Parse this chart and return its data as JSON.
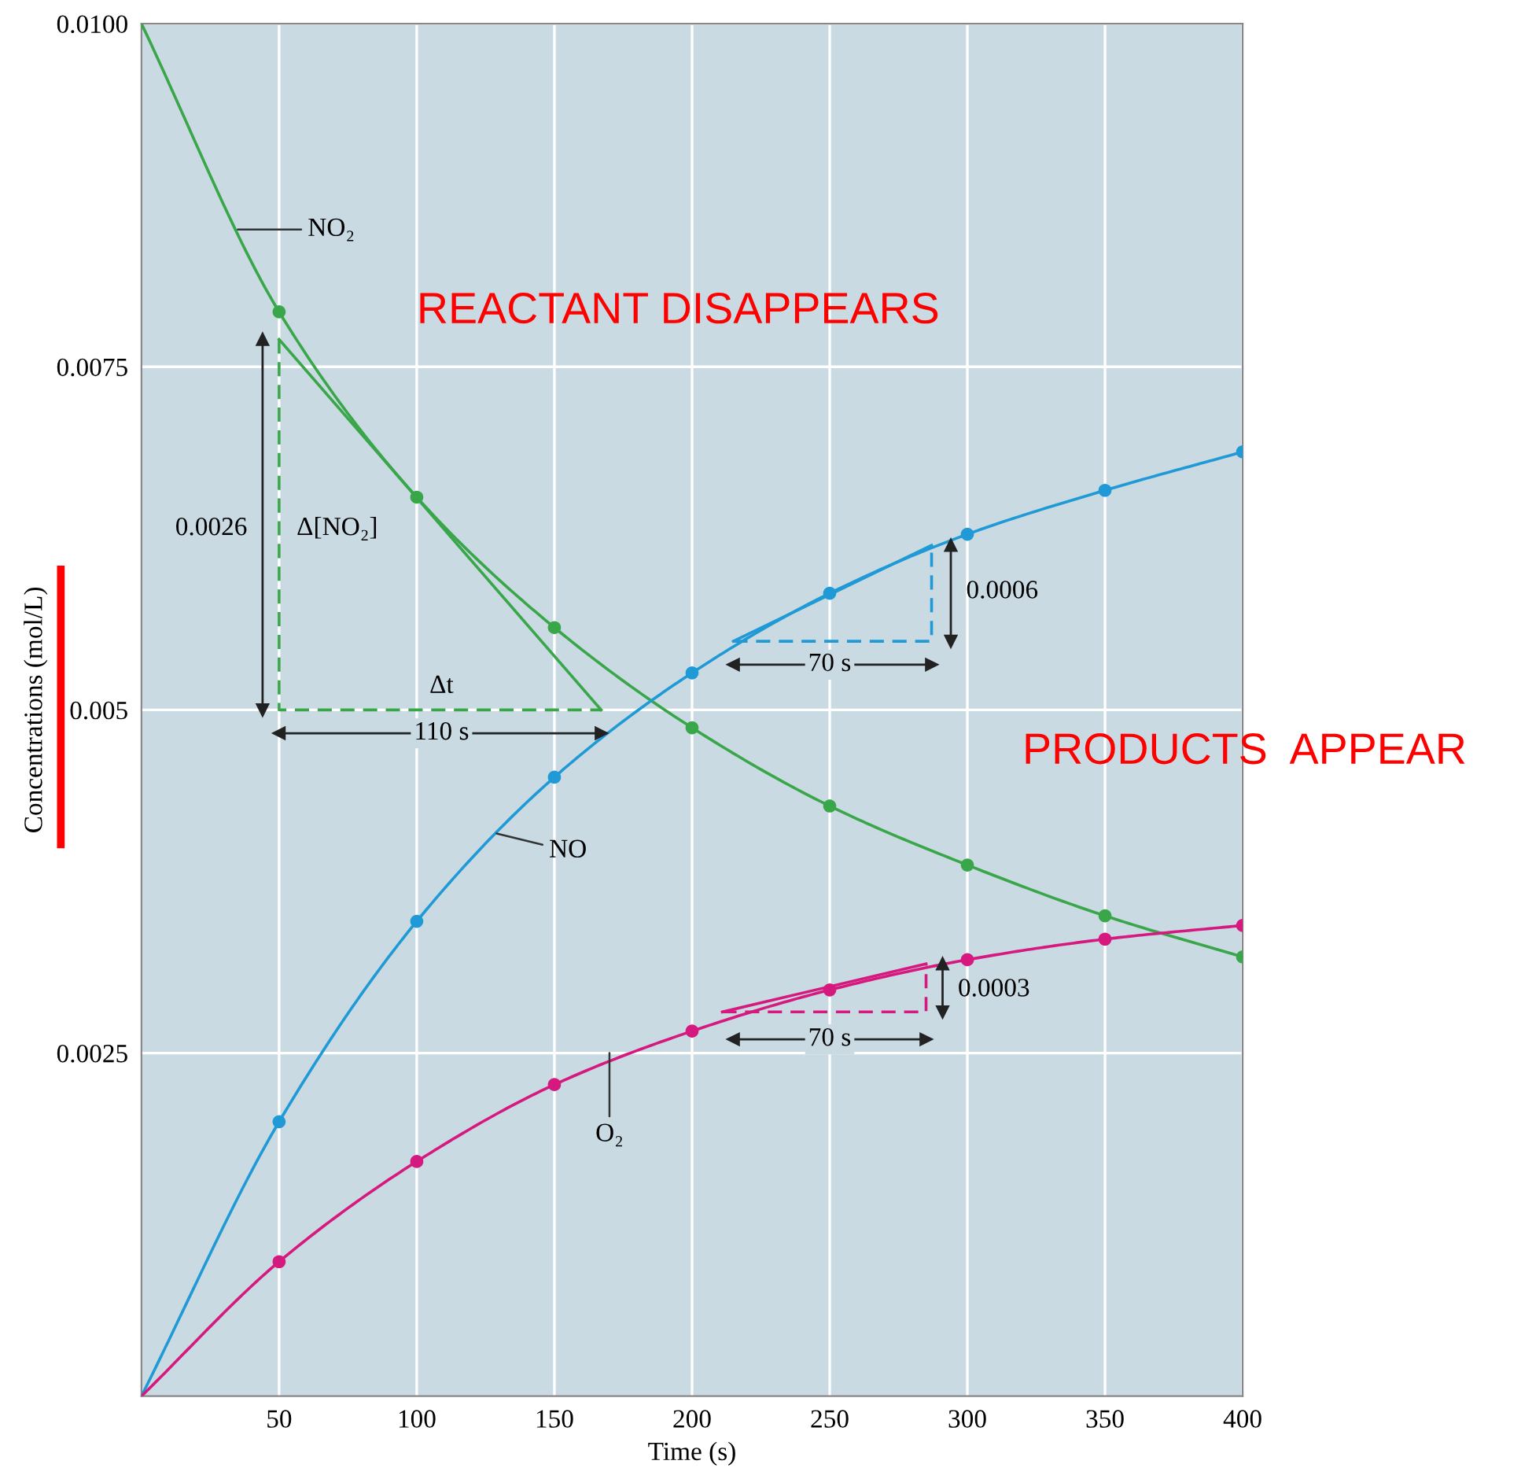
{
  "chart_data": {
    "type": "line",
    "xlabel": "Time (s)",
    "ylabel": "Concentrations (mol/L)",
    "xlim": [
      0,
      400
    ],
    "xticks": [
      50,
      100,
      150,
      200,
      250,
      300,
      350,
      400
    ],
    "ylim": [
      0,
      0.01
    ],
    "yticks": [
      0.0025,
      0.005,
      0.0075,
      {
        "value": 0.01,
        "label": "0.0100"
      }
    ],
    "grid": true,
    "legend": false,
    "series": [
      {
        "color": "#3aa64a",
        "x": [
          0,
          50,
          100,
          150,
          200,
          250,
          300,
          350,
          400
        ],
        "values": [
          0.01,
          0.0079,
          0.00655,
          0.0056,
          0.00487,
          0.0043,
          0.00387,
          0.0035,
          0.0032
        ],
        "marker": "none",
        "line_style": "solid"
      },
      {
        "color": "#1f9ad6",
        "x": [
          0,
          50,
          100,
          150,
          200,
          250,
          300,
          350,
          400
        ],
        "values": [
          0,
          0.002,
          0.00346,
          0.00451,
          0.00527,
          0.00585,
          0.00628,
          0.0066,
          0.00688
        ],
        "marker": "none",
        "line_style": "solid"
      },
      {
        "color": "#d6197f",
        "x": [
          0,
          50,
          100,
          150,
          200,
          250,
          300,
          350,
          400
        ],
        "values": [
          0,
          0.00098,
          0.00171,
          0.00227,
          0.00266,
          0.00296,
          0.00318,
          0.00333,
          0.00343
        ],
        "marker": "none",
        "line_style": "solid"
      },
      {
        "type": "scatter",
        "color": "#3aa64a",
        "x": [
          50,
          100,
          150,
          200,
          250,
          300,
          350,
          400
        ],
        "values": [
          0.0079,
          0.00655,
          0.0056,
          0.00487,
          0.0043,
          0.00387,
          0.0035,
          0.0032
        ],
        "marker": "circle"
      },
      {
        "type": "scatter",
        "color": "#1f9ad6",
        "x": [
          50,
          100,
          150,
          200,
          250,
          300,
          350,
          400
        ],
        "values": [
          0.002,
          0.00346,
          0.00451,
          0.00527,
          0.00585,
          0.00628,
          0.0066,
          0.00688
        ],
        "marker": "circle"
      },
      {
        "type": "scatter",
        "color": "#d6197f",
        "x": [
          50,
          100,
          150,
          200,
          250,
          300,
          350,
          400
        ],
        "values": [
          0.00098,
          0.00171,
          0.00227,
          0.00266,
          0.00296,
          0.00318,
          0.00333,
          0.00343
        ],
        "marker": "circle"
      },
      {
        "type": "line",
        "color": "#3aa64a",
        "x": [
          50,
          167
        ],
        "values": [
          0.0077,
          0.005
        ],
        "marker": "none",
        "line_style": "solid"
      },
      {
        "type": "line",
        "color": "#3aa64a",
        "x": [
          50,
          50,
          167
        ],
        "values": [
          0.0077,
          0.005,
          0.005
        ],
        "marker": "none",
        "line_style": "dashed"
      },
      {
        "type": "line",
        "color": "#1f9ad6",
        "x": [
          215,
          287
        ],
        "values": [
          0.0055,
          0.0062
        ],
        "marker": "none",
        "line_style": "solid"
      },
      {
        "type": "line",
        "color": "#1f9ad6",
        "x": [
          215,
          287,
          287
        ],
        "values": [
          0.0055,
          0.0055,
          0.0062
        ],
        "marker": "none",
        "line_style": "dashed"
      },
      {
        "type": "line",
        "color": "#d6197f",
        "x": [
          211,
          285
        ],
        "values": [
          0.0028,
          0.00315
        ],
        "marker": "none",
        "line_style": "solid"
      },
      {
        "type": "line",
        "color": "#d6197f",
        "x": [
          211,
          285,
          285
        ],
        "values": [
          0.0028,
          0.0028,
          0.00315
        ],
        "marker": "none",
        "line_style": "dashed"
      },
      {
        "type": "line",
        "color": "#222222",
        "x": [
          44,
          44
        ],
        "values": [
          0.0077,
          0.005
        ],
        "marker": "triangle",
        "line_style": "solid"
      },
      {
        "type": "line",
        "color": "#222222",
        "x": [
          50,
          167
        ],
        "values": [
          0.00483,
          0.00483
        ],
        "marker": "triangle",
        "line_style": "solid"
      },
      {
        "type": "line",
        "color": "#222222",
        "x": [
          215,
          287
        ],
        "values": [
          0.00533,
          0.00533
        ],
        "marker": "triangle",
        "line_style": "solid"
      },
      {
        "type": "line",
        "color": "#222222",
        "x": [
          294,
          294
        ],
        "values": [
          0.0062,
          0.0055
        ],
        "marker": "triangle",
        "line_style": "solid"
      },
      {
        "type": "line",
        "color": "#222222",
        "x": [
          291,
          291
        ],
        "values": [
          0.00315,
          0.0028
        ],
        "marker": "triangle",
        "line_style": "solid"
      },
      {
        "type": "line",
        "color": "#222222",
        "x": [
          215,
          285
        ],
        "values": [
          0.0026,
          0.0026
        ],
        "marker": "triangle",
        "line_style": "solid"
      }
    ],
    "annotations": [
      "REACTANT DISAPPEARS",
      "PRODUCTS  APPEAR",
      {
        "text": "NO₂",
        "x": 35,
        "y": 0.0085
      },
      {
        "text": "NO",
        "x": 129,
        "y": 0.0041
      },
      {
        "text": "O₂",
        "x": 170,
        "y": 0.0025
      },
      {
        "text": "0.0026",
        "x": 44,
        "y": 0.00632
      },
      {
        "text": "Δ[NO₂]",
        "x": 50,
        "y": 0.00632
      },
      {
        "text": "Δt",
        "x": 109,
        "y": 0.00517
      },
      {
        "text": "110 s",
        "x": 109,
        "y": 0.00483
      },
      {
        "text": "0.0006",
        "x": 294,
        "y": 0.00586
      },
      {
        "text": "70 s",
        "x": 250,
        "y": 0.00533
      },
      {
        "text": "0.0003",
        "x": 291,
        "y": 0.00296
      },
      {
        "text": "70 s",
        "x": 250,
        "y": 0.0026
      }
    ]
  }
}
